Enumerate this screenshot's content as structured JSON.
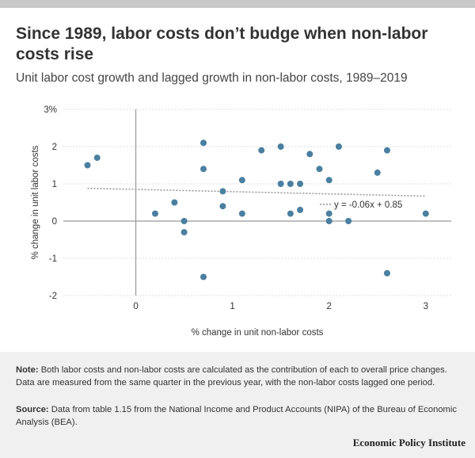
{
  "header": {
    "title": "Since 1989, labor costs don’t budge when non-labor costs rise",
    "subtitle": "Unit labor cost growth and lagged growth in non-labor costs, 1989–2019"
  },
  "footer": {
    "note_label": "Note:",
    "note_text": "Both labor costs and non-labor costs are calculated as the contribution of each to overall price changes. Data are measured from the same quarter in the previous year, with the non-labor costs lagged one period.",
    "source_label": "Source:",
    "source_text": "Data from table 1.15 from the National Income and Product Accounts (NIPA) of the Bureau of Economic Analysis (BEA).",
    "brand": "Economic Policy Institute"
  },
  "colors": {
    "point": "#4a7fa0",
    "trend": "#999999",
    "axis": "#999999",
    "grid": "#dddddd",
    "notes_bg": "#f0f0f0"
  },
  "chart_data": {
    "type": "scatter",
    "xlabel": "% change in unit non-labor costs",
    "ylabel": "% change in unit labor costs",
    "xlim": [
      -0.75,
      3.1
    ],
    "ylim": [
      -2,
      3
    ],
    "x_ticks": [
      {
        "v": 0,
        "label": "0"
      },
      {
        "v": 1,
        "label": "1"
      },
      {
        "v": 2,
        "label": "2"
      },
      {
        "v": 3,
        "label": "3"
      }
    ],
    "y_ticks": [
      {
        "v": 3,
        "label": "3%"
      },
      {
        "v": 2,
        "label": "2"
      },
      {
        "v": 1,
        "label": "1"
      },
      {
        "v": 0,
        "label": "0"
      },
      {
        "v": -1,
        "label": "-1"
      },
      {
        "v": -2,
        "label": "-2"
      }
    ],
    "grid": "horizontal",
    "trendline": {
      "slope": -0.06,
      "intercept": 0.85,
      "x_range": [
        -0.5,
        3.0
      ],
      "label": "y = -0.06x + 0.85"
    },
    "points": [
      {
        "x": -0.5,
        "y": 1.5
      },
      {
        "x": -0.4,
        "y": 1.7
      },
      {
        "x": 0.2,
        "y": 0.2
      },
      {
        "x": 0.4,
        "y": 0.5
      },
      {
        "x": 0.5,
        "y": 0.0
      },
      {
        "x": 0.5,
        "y": -0.3
      },
      {
        "x": 0.7,
        "y": 2.1
      },
      {
        "x": 0.7,
        "y": 1.4
      },
      {
        "x": 0.7,
        "y": -1.5
      },
      {
        "x": 0.9,
        "y": 0.8
      },
      {
        "x": 0.9,
        "y": 0.4
      },
      {
        "x": 1.1,
        "y": 1.1
      },
      {
        "x": 1.1,
        "y": 0.2
      },
      {
        "x": 1.3,
        "y": 1.9
      },
      {
        "x": 1.5,
        "y": 2.0
      },
      {
        "x": 1.5,
        "y": 1.0
      },
      {
        "x": 1.6,
        "y": 1.0
      },
      {
        "x": 1.6,
        "y": 0.2
      },
      {
        "x": 1.7,
        "y": 1.0
      },
      {
        "x": 1.7,
        "y": 0.3
      },
      {
        "x": 1.8,
        "y": 1.8
      },
      {
        "x": 1.9,
        "y": 1.4
      },
      {
        "x": 2.0,
        "y": 1.1
      },
      {
        "x": 2.0,
        "y": 0.2
      },
      {
        "x": 2.0,
        "y": 0.0
      },
      {
        "x": 2.1,
        "y": 2.0
      },
      {
        "x": 2.2,
        "y": 0.0
      },
      {
        "x": 2.5,
        "y": 1.3
      },
      {
        "x": 2.6,
        "y": 1.9
      },
      {
        "x": 2.6,
        "y": -1.4
      },
      {
        "x": 3.0,
        "y": 0.2
      }
    ]
  }
}
